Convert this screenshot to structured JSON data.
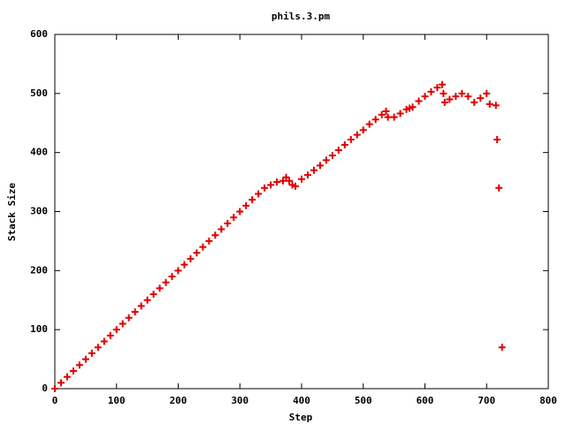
{
  "chart_data": {
    "type": "scatter",
    "title": "phils.3.pm",
    "x_label": "Step",
    "y_label": "Stack Size",
    "color": "#e00000",
    "x": [
      0,
      10,
      20,
      30,
      40,
      50,
      60,
      70,
      80,
      90,
      100,
      110,
      120,
      130,
      140,
      150,
      160,
      170,
      180,
      190,
      200,
      210,
      220,
      230,
      240,
      250,
      260,
      270,
      280,
      290,
      300,
      310,
      320,
      330,
      340,
      350,
      360,
      370,
      375,
      380,
      385,
      390,
      400,
      410,
      420,
      430,
      440,
      450,
      460,
      470,
      480,
      490,
      500,
      510,
      520,
      530,
      537,
      540,
      550,
      560,
      570,
      575,
      580,
      590,
      600,
      610,
      620,
      628,
      630,
      632,
      640,
      650,
      660,
      670,
      680,
      690,
      700,
      705,
      715,
      717,
      720,
      725
    ],
    "values": [
      0,
      10,
      20,
      30,
      40,
      50,
      60,
      70,
      80,
      90,
      100,
      110,
      120,
      130,
      140,
      150,
      160,
      170,
      180,
      190,
      200,
      210,
      220,
      230,
      240,
      250,
      260,
      270,
      280,
      290,
      300,
      310,
      320,
      330,
      340,
      345,
      350,
      352,
      358,
      352,
      345,
      343,
      355,
      362,
      370,
      378,
      387,
      395,
      404,
      413,
      422,
      430,
      438,
      448,
      456,
      464,
      470,
      460,
      460,
      466,
      473,
      475,
      477,
      487,
      495,
      503,
      510,
      515,
      500,
      485,
      490,
      495,
      500,
      495,
      485,
      492,
      500,
      482,
      480,
      422,
      340,
      70
    ],
    "xlim": [
      0,
      800
    ],
    "xticks": [
      0,
      100,
      200,
      300,
      400,
      500,
      600,
      700,
      800
    ],
    "ylim": [
      0,
      600
    ],
    "yticks": [
      0,
      100,
      200,
      300,
      400,
      500,
      600
    ]
  }
}
